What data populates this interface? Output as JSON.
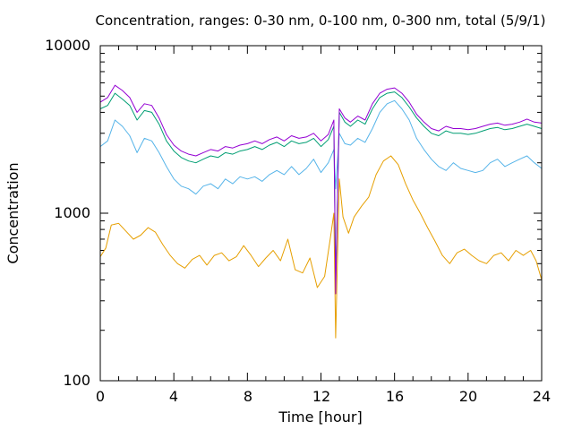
{
  "chart_data": {
    "type": "line",
    "title": "Concentration, ranges: 0-30 nm, 0-100 nm, 0-300 nm, total (5/9/1)",
    "xlabel": "Time [hour]",
    "ylabel": "Concentration",
    "x_ticks": [
      "0",
      "4",
      "8",
      "12",
      "16",
      "20",
      "24"
    ],
    "y_ticks": [
      "100",
      "1000",
      "10000"
    ],
    "xlim": [
      0,
      24
    ],
    "ylim": [
      100,
      10000
    ],
    "y_scale": "log",
    "grid": false,
    "legend": "none",
    "series": [
      {
        "color": "#e69f00",
        "points": [
          [
            0,
            550
          ],
          [
            0.3,
            620
          ],
          [
            0.6,
            850
          ],
          [
            1,
            870
          ],
          [
            1.4,
            780
          ],
          [
            1.8,
            700
          ],
          [
            2.2,
            740
          ],
          [
            2.6,
            820
          ],
          [
            3,
            770
          ],
          [
            3.4,
            650
          ],
          [
            3.8,
            560
          ],
          [
            4.2,
            500
          ],
          [
            4.6,
            470
          ],
          [
            5,
            530
          ],
          [
            5.4,
            560
          ],
          [
            5.8,
            490
          ],
          [
            6.2,
            560
          ],
          [
            6.6,
            580
          ],
          [
            7,
            520
          ],
          [
            7.4,
            550
          ],
          [
            7.8,
            640
          ],
          [
            8.2,
            560
          ],
          [
            8.6,
            480
          ],
          [
            9,
            540
          ],
          [
            9.4,
            600
          ],
          [
            9.8,
            520
          ],
          [
            10.2,
            700
          ],
          [
            10.6,
            460
          ],
          [
            11,
            440
          ],
          [
            11.4,
            540
          ],
          [
            11.8,
            360
          ],
          [
            12.2,
            420
          ],
          [
            12.5,
            700
          ],
          [
            12.7,
            1000
          ],
          [
            12.8,
            180
          ],
          [
            13,
            1600
          ],
          [
            13.2,
            950
          ],
          [
            13.5,
            760
          ],
          [
            13.8,
            950
          ],
          [
            14.2,
            1100
          ],
          [
            14.6,
            1250
          ],
          [
            15,
            1700
          ],
          [
            15.4,
            2050
          ],
          [
            15.8,
            2200
          ],
          [
            16.2,
            1950
          ],
          [
            16.6,
            1500
          ],
          [
            17,
            1200
          ],
          [
            17.4,
            1000
          ],
          [
            17.8,
            820
          ],
          [
            18.2,
            680
          ],
          [
            18.6,
            560
          ],
          [
            19,
            500
          ],
          [
            19.4,
            580
          ],
          [
            19.8,
            610
          ],
          [
            20.2,
            560
          ],
          [
            20.6,
            520
          ],
          [
            21,
            500
          ],
          [
            21.4,
            560
          ],
          [
            21.8,
            580
          ],
          [
            22.2,
            520
          ],
          [
            22.6,
            600
          ],
          [
            23,
            560
          ],
          [
            23.4,
            600
          ],
          [
            23.7,
            520
          ],
          [
            24,
            400
          ]
        ]
      },
      {
        "color": "#56b4e9",
        "points": [
          [
            0,
            2500
          ],
          [
            0.4,
            2700
          ],
          [
            0.8,
            3600
          ],
          [
            1.2,
            3300
          ],
          [
            1.6,
            2900
          ],
          [
            2,
            2300
          ],
          [
            2.4,
            2800
          ],
          [
            2.8,
            2700
          ],
          [
            3.2,
            2300
          ],
          [
            3.6,
            1900
          ],
          [
            4,
            1600
          ],
          [
            4.4,
            1450
          ],
          [
            4.8,
            1400
          ],
          [
            5.2,
            1300
          ],
          [
            5.6,
            1450
          ],
          [
            6,
            1500
          ],
          [
            6.4,
            1400
          ],
          [
            6.8,
            1600
          ],
          [
            7.2,
            1500
          ],
          [
            7.6,
            1650
          ],
          [
            8,
            1600
          ],
          [
            8.4,
            1650
          ],
          [
            8.8,
            1550
          ],
          [
            9.2,
            1700
          ],
          [
            9.6,
            1800
          ],
          [
            10,
            1700
          ],
          [
            10.4,
            1900
          ],
          [
            10.8,
            1700
          ],
          [
            11.2,
            1850
          ],
          [
            11.6,
            2100
          ],
          [
            12,
            1750
          ],
          [
            12.4,
            2000
          ],
          [
            12.7,
            2400
          ],
          [
            12.8,
            1400
          ],
          [
            13,
            3000
          ],
          [
            13.3,
            2600
          ],
          [
            13.6,
            2550
          ],
          [
            14,
            2800
          ],
          [
            14.4,
            2650
          ],
          [
            14.8,
            3200
          ],
          [
            15.2,
            4000
          ],
          [
            15.6,
            4500
          ],
          [
            16,
            4700
          ],
          [
            16.4,
            4200
          ],
          [
            16.8,
            3600
          ],
          [
            17.2,
            2800
          ],
          [
            17.6,
            2400
          ],
          [
            18,
            2100
          ],
          [
            18.4,
            1900
          ],
          [
            18.8,
            1800
          ],
          [
            19.2,
            2000
          ],
          [
            19.6,
            1850
          ],
          [
            20,
            1800
          ],
          [
            20.4,
            1750
          ],
          [
            20.8,
            1800
          ],
          [
            21.2,
            2000
          ],
          [
            21.6,
            2100
          ],
          [
            22,
            1900
          ],
          [
            22.4,
            2000
          ],
          [
            22.8,
            2100
          ],
          [
            23.2,
            2200
          ],
          [
            23.6,
            2000
          ],
          [
            24,
            1850
          ]
        ]
      },
      {
        "color": "#009e73",
        "points": [
          [
            0,
            4200
          ],
          [
            0.4,
            4400
          ],
          [
            0.8,
            5200
          ],
          [
            1.2,
            4800
          ],
          [
            1.6,
            4400
          ],
          [
            2,
            3600
          ],
          [
            2.4,
            4100
          ],
          [
            2.8,
            4000
          ],
          [
            3.2,
            3400
          ],
          [
            3.6,
            2700
          ],
          [
            4,
            2350
          ],
          [
            4.4,
            2150
          ],
          [
            4.8,
            2050
          ],
          [
            5.2,
            2000
          ],
          [
            5.6,
            2100
          ],
          [
            6,
            2200
          ],
          [
            6.4,
            2150
          ],
          [
            6.8,
            2300
          ],
          [
            7.2,
            2250
          ],
          [
            7.6,
            2350
          ],
          [
            8,
            2400
          ],
          [
            8.4,
            2500
          ],
          [
            8.8,
            2400
          ],
          [
            9.2,
            2550
          ],
          [
            9.6,
            2650
          ],
          [
            10,
            2500
          ],
          [
            10.4,
            2700
          ],
          [
            10.8,
            2600
          ],
          [
            11.2,
            2650
          ],
          [
            11.6,
            2800
          ],
          [
            12,
            2500
          ],
          [
            12.4,
            2750
          ],
          [
            12.7,
            3300
          ],
          [
            12.8,
            400
          ],
          [
            13,
            4000
          ],
          [
            13.3,
            3500
          ],
          [
            13.6,
            3300
          ],
          [
            14,
            3600
          ],
          [
            14.4,
            3400
          ],
          [
            14.8,
            4200
          ],
          [
            15.2,
            4900
          ],
          [
            15.6,
            5200
          ],
          [
            16,
            5300
          ],
          [
            16.4,
            4900
          ],
          [
            16.8,
            4300
          ],
          [
            17.2,
            3700
          ],
          [
            17.6,
            3300
          ],
          [
            18,
            3000
          ],
          [
            18.4,
            2900
          ],
          [
            18.8,
            3100
          ],
          [
            19.2,
            3000
          ],
          [
            19.6,
            3000
          ],
          [
            20,
            2950
          ],
          [
            20.4,
            3000
          ],
          [
            20.8,
            3100
          ],
          [
            21.2,
            3200
          ],
          [
            21.6,
            3250
          ],
          [
            22,
            3150
          ],
          [
            22.4,
            3200
          ],
          [
            22.8,
            3300
          ],
          [
            23.2,
            3400
          ],
          [
            23.6,
            3300
          ],
          [
            24,
            3200
          ]
        ]
      },
      {
        "color": "#9400d3",
        "points": [
          [
            0,
            4600
          ],
          [
            0.4,
            4900
          ],
          [
            0.8,
            5800
          ],
          [
            1.2,
            5400
          ],
          [
            1.6,
            4900
          ],
          [
            2,
            4000
          ],
          [
            2.4,
            4500
          ],
          [
            2.8,
            4400
          ],
          [
            3.2,
            3700
          ],
          [
            3.6,
            2950
          ],
          [
            4,
            2550
          ],
          [
            4.4,
            2350
          ],
          [
            4.8,
            2250
          ],
          [
            5.2,
            2200
          ],
          [
            5.6,
            2300
          ],
          [
            6,
            2400
          ],
          [
            6.4,
            2350
          ],
          [
            6.8,
            2500
          ],
          [
            7.2,
            2450
          ],
          [
            7.6,
            2550
          ],
          [
            8,
            2600
          ],
          [
            8.4,
            2700
          ],
          [
            8.8,
            2600
          ],
          [
            9.2,
            2750
          ],
          [
            9.6,
            2850
          ],
          [
            10,
            2700
          ],
          [
            10.4,
            2900
          ],
          [
            10.8,
            2800
          ],
          [
            11.2,
            2850
          ],
          [
            11.6,
            3000
          ],
          [
            12,
            2700
          ],
          [
            12.4,
            2950
          ],
          [
            12.7,
            3600
          ],
          [
            12.8,
            330
          ],
          [
            13,
            4200
          ],
          [
            13.3,
            3700
          ],
          [
            13.6,
            3500
          ],
          [
            14,
            3800
          ],
          [
            14.4,
            3600
          ],
          [
            14.8,
            4500
          ],
          [
            15.2,
            5200
          ],
          [
            15.6,
            5500
          ],
          [
            16,
            5600
          ],
          [
            16.4,
            5200
          ],
          [
            16.8,
            4600
          ],
          [
            17.2,
            3900
          ],
          [
            17.6,
            3500
          ],
          [
            18,
            3200
          ],
          [
            18.4,
            3100
          ],
          [
            18.8,
            3300
          ],
          [
            19.2,
            3200
          ],
          [
            19.6,
            3200
          ],
          [
            20,
            3150
          ],
          [
            20.4,
            3200
          ],
          [
            20.8,
            3300
          ],
          [
            21.2,
            3400
          ],
          [
            21.6,
            3450
          ],
          [
            22,
            3350
          ],
          [
            22.4,
            3400
          ],
          [
            22.8,
            3500
          ],
          [
            23.2,
            3650
          ],
          [
            23.6,
            3500
          ],
          [
            24,
            3450
          ]
        ]
      }
    ]
  }
}
